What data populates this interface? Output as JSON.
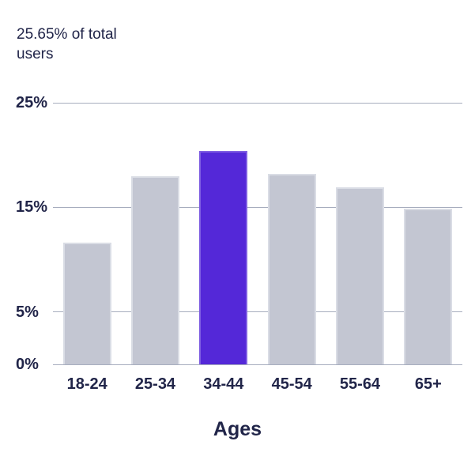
{
  "header": {
    "subtitle": "25.65% of total users"
  },
  "chart_data": {
    "type": "bar",
    "title": "25.65% of total users",
    "categories": [
      "18-24",
      "25-34",
      "34-44",
      "45-54",
      "55-64",
      "65+"
    ],
    "values": [
      11.6,
      18.0,
      20.4,
      18.2,
      16.9,
      14.9
    ],
    "unit": "%",
    "highlight_index": 2,
    "highlight_category": "34-44",
    "xlabel": "Ages",
    "ylabel": "",
    "ylim": [
      0,
      25
    ],
    "yticks": [
      {
        "value": 0,
        "label": "0%"
      },
      {
        "value": 5,
        "label": "5%"
      },
      {
        "value": 15,
        "label": "15%"
      },
      {
        "value": 25,
        "label": "25%"
      }
    ],
    "grid": "horizontal-at-labeled-ticks-only",
    "legend": "none",
    "colors": {
      "bar": "#c3c6d2",
      "bar_border": "#dadde5",
      "highlight": "#5428d8",
      "grid": "#a7adbe",
      "text": "#212549",
      "background": "#ffffff"
    }
  }
}
